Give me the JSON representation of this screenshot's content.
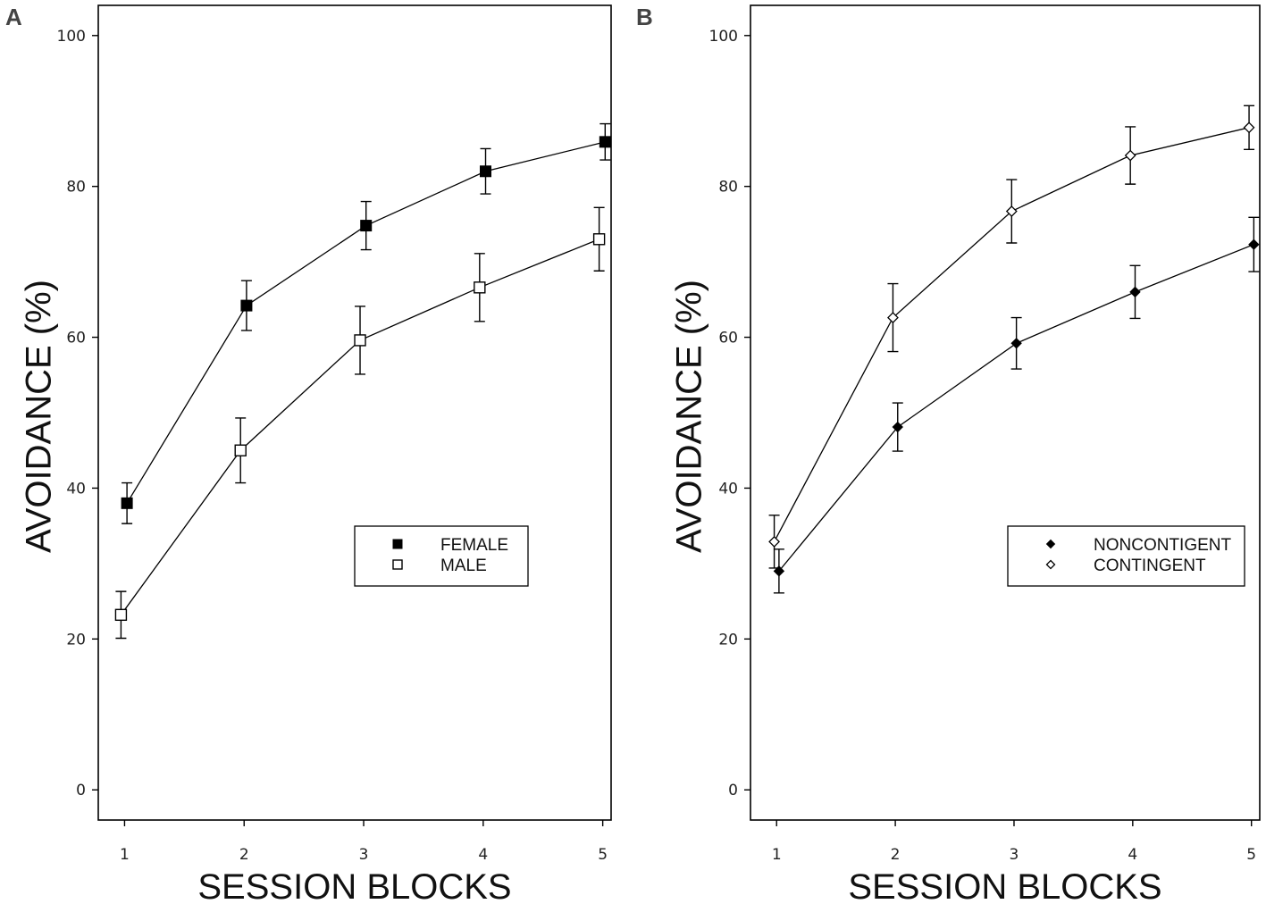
{
  "chart_data": [
    {
      "type": "line",
      "panel_label": "A",
      "xlabel": "SESSION BLOCKS",
      "ylabel": "AVOIDANCE (%)",
      "x": [
        1,
        2,
        3,
        4,
        5
      ],
      "xlim": [
        0.78,
        5.07
      ],
      "ylim": [
        -4,
        104
      ],
      "yticks": [
        0,
        20,
        40,
        60,
        80,
        100
      ],
      "xticks": [
        1,
        2,
        3,
        4,
        5
      ],
      "legend_placement": "center-right",
      "series": [
        {
          "name": "FEMALE",
          "marker": "filled-square",
          "x_offset": 0.02,
          "values": [
            38,
            64.2,
            74.8,
            82,
            85.9
          ],
          "errors": [
            2.7,
            3.3,
            3.2,
            3.0,
            2.4
          ]
        },
        {
          "name": "MALE",
          "marker": "open-square",
          "x_offset": -0.03,
          "values": [
            23.2,
            45,
            59.6,
            66.6,
            73
          ],
          "errors": [
            3.1,
            4.3,
            4.5,
            4.5,
            4.2
          ]
        }
      ]
    },
    {
      "type": "line",
      "panel_label": "B",
      "xlabel": "SESSION BLOCKS",
      "ylabel": "AVOIDANCE (%)",
      "x": [
        1,
        2,
        3,
        4,
        5
      ],
      "xlim": [
        0.78,
        5.07
      ],
      "ylim": [
        -4,
        104
      ],
      "yticks": [
        0,
        20,
        40,
        60,
        80,
        100
      ],
      "xticks": [
        1,
        2,
        3,
        4,
        5
      ],
      "legend_placement": "center-right",
      "series": [
        {
          "name": "NONCONTIGENT",
          "marker": "filled-diamond",
          "x_offset": 0.02,
          "values": [
            29,
            48.1,
            59.2,
            66,
            72.3
          ],
          "errors": [
            2.9,
            3.2,
            3.4,
            3.5,
            3.6
          ]
        },
        {
          "name": "CONTINGENT",
          "marker": "open-diamond",
          "x_offset": -0.02,
          "values": [
            32.9,
            62.6,
            76.7,
            84.1,
            87.8
          ],
          "errors": [
            3.5,
            4.5,
            4.2,
            3.8,
            2.9
          ]
        }
      ]
    }
  ]
}
